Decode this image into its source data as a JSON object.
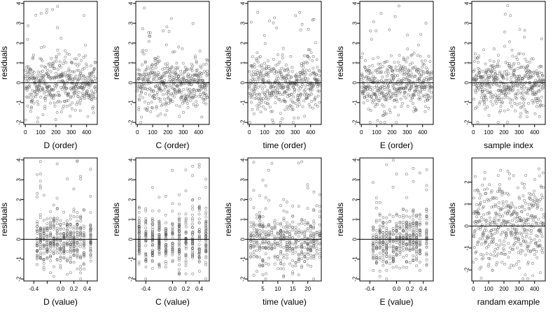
{
  "figure": {
    "background": "#ffffff",
    "point_color": "#555555",
    "line_color": "#000000"
  },
  "chart_data": [
    {
      "type": "scatter",
      "xlabel": "D (order)",
      "ylabel": "residuals",
      "xlim": [
        -10,
        470
      ],
      "ylim": [
        -2.1,
        4.1
      ],
      "xticks": [
        0,
        100,
        200,
        300,
        400
      ],
      "xtick_labels": [
        "0",
        "100",
        "200",
        "300",
        "400"
      ],
      "yticks": [
        -2,
        -1,
        0,
        1,
        2,
        3,
        4
      ],
      "ytick_labels": [
        "-2",
        "-1",
        "0",
        "1",
        "2",
        "3",
        "4"
      ],
      "hline": 0,
      "n_points": 460,
      "x_range": [
        0,
        460
      ],
      "x_groups": [],
      "y_distribution": {
        "mean": -0.05,
        "sd": 0.7,
        "min": -2,
        "max": 4
      }
    },
    {
      "type": "scatter",
      "xlabel": "C (order)",
      "ylabel": "residuals",
      "xlim": [
        -10,
        470
      ],
      "ylim": [
        -2.1,
        4.1
      ],
      "xticks": [
        0,
        100,
        200,
        300,
        400
      ],
      "xtick_labels": [
        "0",
        "100",
        "200",
        "300",
        "400"
      ],
      "yticks": [
        -2,
        -1,
        0,
        1,
        2,
        3,
        4
      ],
      "ytick_labels": [
        "-2",
        "-1",
        "0",
        "1",
        "2",
        "3",
        "4"
      ],
      "hline": 0,
      "n_points": 460,
      "x_range": [
        0,
        460
      ],
      "x_groups": [],
      "y_distribution": {
        "mean": -0.05,
        "sd": 0.7,
        "min": -2,
        "max": 4
      }
    },
    {
      "type": "scatter",
      "xlabel": "time (order)",
      "ylabel": "residuals",
      "xlim": [
        -10,
        470
      ],
      "ylim": [
        -2.1,
        4.1
      ],
      "xticks": [
        0,
        100,
        200,
        300,
        400
      ],
      "xtick_labels": [
        "0",
        "100",
        "200",
        "300",
        "400"
      ],
      "yticks": [
        -2,
        -1,
        0,
        1,
        2,
        3,
        4
      ],
      "ytick_labels": [
        "-2",
        "-1",
        "0",
        "1",
        "2",
        "3",
        "4"
      ],
      "hline": 0,
      "n_points": 460,
      "x_range": [
        0,
        460
      ],
      "x_groups": [],
      "y_distribution": {
        "mean": -0.05,
        "sd": 0.7,
        "min": -2,
        "max": 4
      }
    },
    {
      "type": "scatter",
      "xlabel": "E (order)",
      "ylabel": "residuals",
      "xlim": [
        -10,
        470
      ],
      "ylim": [
        -2.1,
        4.1
      ],
      "xticks": [
        0,
        100,
        200,
        300,
        400
      ],
      "xtick_labels": [
        "0",
        "100",
        "200",
        "300",
        "400"
      ],
      "yticks": [
        -2,
        -1,
        0,
        1,
        2,
        3,
        4
      ],
      "ytick_labels": [
        "-2",
        "-1",
        "0",
        "1",
        "2",
        "3",
        "4"
      ],
      "hline": 0,
      "n_points": 460,
      "x_range": [
        0,
        460
      ],
      "x_groups": [],
      "y_distribution": {
        "mean": -0.05,
        "sd": 0.7,
        "min": -2,
        "max": 4
      }
    },
    {
      "type": "scatter",
      "xlabel": "sample index",
      "ylabel": "residuals",
      "xlim": [
        -10,
        470
      ],
      "ylim": [
        -2.1,
        4.1
      ],
      "xticks": [
        0,
        100,
        200,
        300,
        400
      ],
      "xtick_labels": [
        "0",
        "100",
        "200",
        "300",
        "400"
      ],
      "yticks": [
        -2,
        -1,
        0,
        1,
        2,
        3,
        4
      ],
      "ytick_labels": [
        "-2",
        "-1",
        "0",
        "1",
        "2",
        "3",
        "4"
      ],
      "hline": 0,
      "n_points": 460,
      "x_range": [
        0,
        460
      ],
      "x_groups": [],
      "y_distribution": {
        "mean": -0.05,
        "sd": 0.7,
        "min": -2,
        "max": 4
      }
    },
    {
      "type": "scatter",
      "xlabel": "D (value)",
      "ylabel": "residuals",
      "xlim": [
        -0.55,
        0.55
      ],
      "ylim": [
        -2.1,
        4.1
      ],
      "xticks": [
        -0.4,
        -0.2,
        0,
        0.2,
        0.4
      ],
      "xtick_labels": [
        "-0.4",
        "0.0",
        "0.2",
        "0.4"
      ],
      "xtick_label_values": [
        -0.4,
        0,
        0.2,
        0.4
      ],
      "yticks": [
        -2,
        -1,
        0,
        1,
        2,
        3,
        4
      ],
      "ytick_labels": [
        "-2",
        "-1",
        "0",
        "1",
        "2",
        "3",
        "4"
      ],
      "hline": 0,
      "n_points": 460,
      "x_range": [
        -0.5,
        0.5
      ],
      "x_groups": [
        -0.35,
        -0.3,
        -0.25,
        -0.2,
        -0.15,
        -0.1,
        -0.05,
        0,
        0.05,
        0.1,
        0.15,
        0.2,
        0.25,
        0.3,
        0.35,
        0.45
      ],
      "y_distribution": {
        "mean": -0.05,
        "sd": 0.7,
        "min": -2,
        "max": 4
      }
    },
    {
      "type": "scatter",
      "xlabel": "C (value)",
      "ylabel": "residuals",
      "xlim": [
        -0.55,
        0.55
      ],
      "ylim": [
        -2.1,
        4.1
      ],
      "xticks": [
        -0.4,
        0,
        0.2,
        0.4
      ],
      "xtick_labels": [
        "-0.4",
        "0.0",
        "0.2",
        "0.4"
      ],
      "yticks": [
        -2,
        -1,
        0,
        1,
        2,
        3,
        4
      ],
      "ytick_labels": [
        "-2",
        "-1",
        "0",
        "1",
        "2",
        "3",
        "4"
      ],
      "hline": 0,
      "n_points": 460,
      "x_range": [
        -0.5,
        0.5
      ],
      "x_groups": [
        -0.5,
        -0.4,
        -0.3,
        -0.2,
        -0.1,
        0,
        0.1,
        0.2,
        0.3,
        0.4,
        0.5
      ],
      "y_distribution": {
        "mean": -0.05,
        "sd": 0.7,
        "min": -2,
        "max": 4
      }
    },
    {
      "type": "scatter",
      "xlabel": "time (value)",
      "ylabel": "residuals",
      "xlim": [
        0,
        24.5
      ],
      "ylim": [
        -2.1,
        4.1
      ],
      "xticks": [
        5,
        10,
        15,
        20
      ],
      "xtick_labels": [
        "5",
        "10",
        "15",
        "20"
      ],
      "yticks": [
        -2,
        -1,
        0,
        1,
        2,
        3,
        4
      ],
      "ytick_labels": [
        "-2",
        "-1",
        "0",
        "1",
        "2",
        "3",
        "4"
      ],
      "hline": 0,
      "n_points": 460,
      "x_range": [
        1,
        24
      ],
      "x_groups": [
        1,
        2,
        3,
        4,
        5,
        6,
        7,
        8,
        9,
        10,
        11,
        12,
        13,
        14,
        15,
        16,
        17,
        18,
        19,
        20,
        21,
        22,
        23,
        24
      ],
      "y_distribution": {
        "mean": -0.05,
        "sd": 0.7,
        "min": -2,
        "max": 4
      }
    },
    {
      "type": "scatter",
      "xlabel": "E (value)",
      "ylabel": "residuals",
      "xlim": [
        -0.55,
        0.55
      ],
      "ylim": [
        -2.1,
        4.1
      ],
      "xticks": [
        -0.4,
        0,
        0.2,
        0.4
      ],
      "xtick_labels": [
        "-0.4",
        "0.0",
        "0.2",
        "0.4"
      ],
      "yticks": [
        -2,
        -1,
        0,
        1,
        2,
        3,
        4
      ],
      "ytick_labels": [
        "-2",
        "-1",
        "0",
        "1",
        "2",
        "3",
        "4"
      ],
      "hline": 0,
      "n_points": 460,
      "x_range": [
        -0.5,
        0.5
      ],
      "x_groups": [
        -0.35,
        -0.3,
        -0.25,
        -0.2,
        -0.15,
        -0.1,
        -0.05,
        0,
        0.05,
        0.1,
        0.15,
        0.2,
        0.25,
        0.3,
        0.35,
        0.45
      ],
      "y_distribution": {
        "mean": -0.05,
        "sd": 0.7,
        "min": -2,
        "max": 4
      }
    },
    {
      "type": "scatter",
      "xlabel": "randam example",
      "ylabel": "residuals",
      "xlim": [
        -10,
        470
      ],
      "ylim": [
        -2.5,
        3.1
      ],
      "xticks": [
        0,
        100,
        200,
        300,
        400
      ],
      "xtick_labels": [
        "0",
        "100",
        "200",
        "300",
        "400"
      ],
      "yticks": [
        -2,
        -1,
        0,
        1,
        2
      ],
      "ytick_labels": [
        "-2",
        "-1",
        "0",
        "1",
        "2"
      ],
      "hline": 0,
      "n_points": 460,
      "x_range": [
        0,
        460
      ],
      "x_groups": [],
      "y_distribution": {
        "mean": 0,
        "sd": 1,
        "min": -2.4,
        "max": 2.6
      }
    }
  ]
}
